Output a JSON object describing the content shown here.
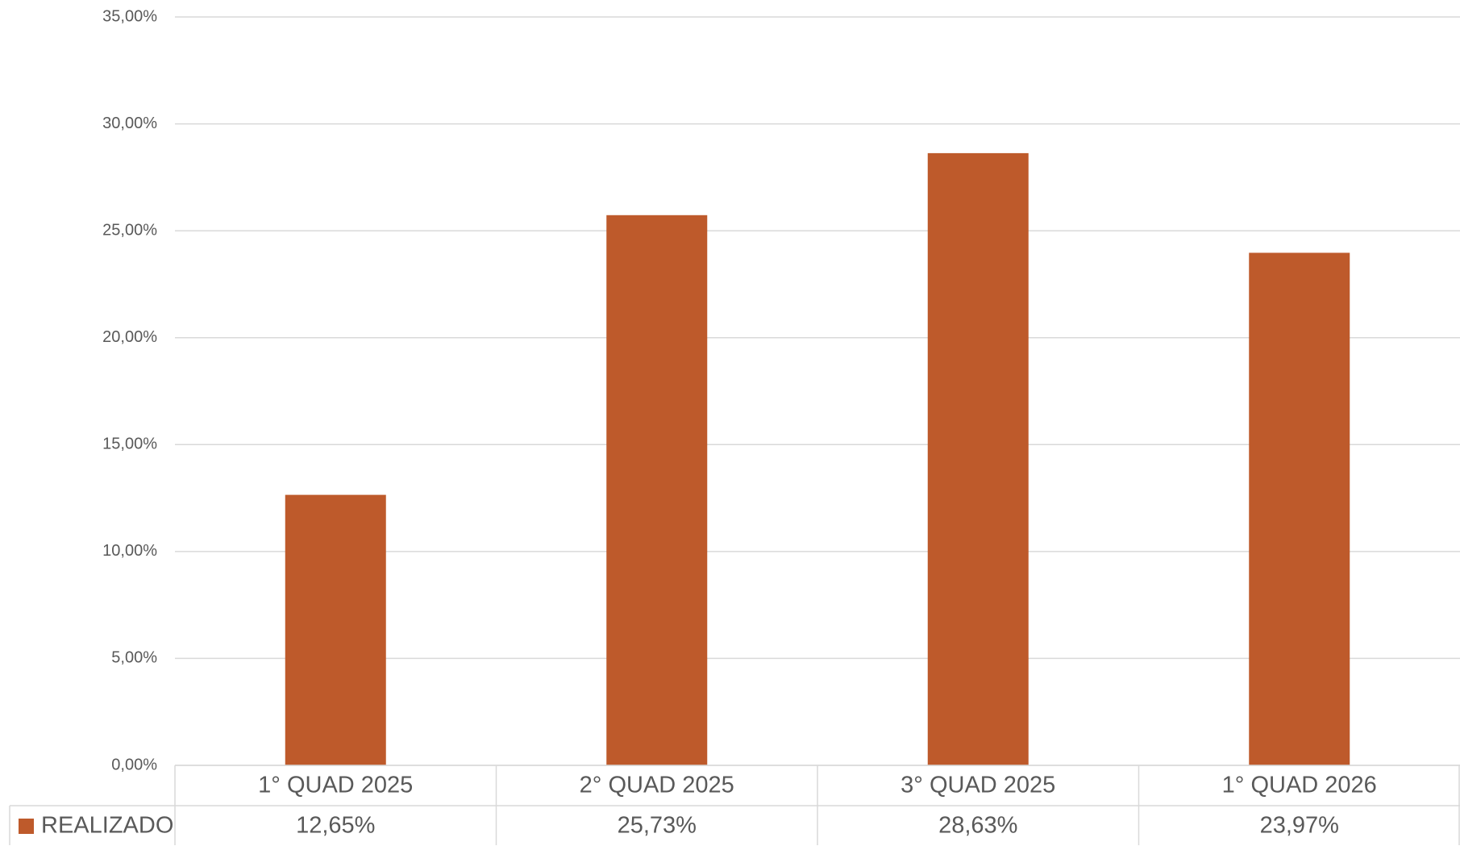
{
  "chart_data": {
    "type": "bar",
    "categories": [
      "1° QUAD 2025",
      "2° QUAD 2025",
      "3° QUAD 2025",
      "1° QUAD 2026"
    ],
    "series": [
      {
        "name": "REALIZADO",
        "color": "#be5a2b",
        "values": [
          12.65,
          25.73,
          28.63,
          23.97
        ],
        "value_labels": [
          "12,65%",
          "25,73%",
          "28,63%",
          "23,97%"
        ]
      }
    ],
    "ylim": [
      0,
      35
    ],
    "yticks": [
      {
        "value": 0,
        "label": "0,00%"
      },
      {
        "value": 5,
        "label": "5,00%"
      },
      {
        "value": 10,
        "label": "10,00%"
      },
      {
        "value": 15,
        "label": "15,00%"
      },
      {
        "value": 20,
        "label": "20,00%"
      },
      {
        "value": 25,
        "label": "25,00%"
      },
      {
        "value": 30,
        "label": "30,00%"
      },
      {
        "value": 35,
        "label": "35,00%"
      }
    ],
    "grid": true
  }
}
